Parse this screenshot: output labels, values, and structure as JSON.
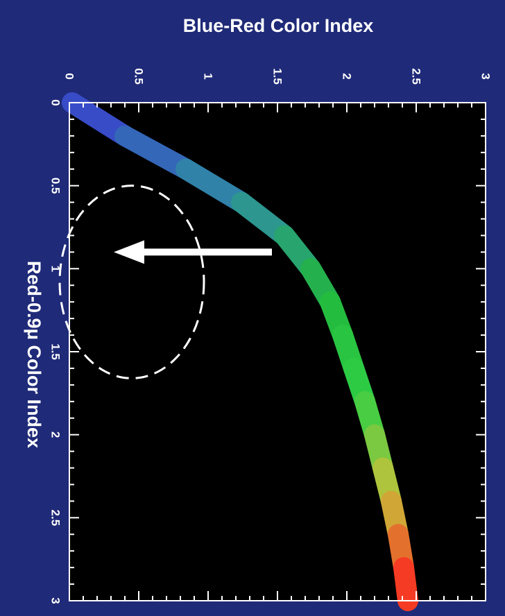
{
  "chart_data": {
    "type": "line",
    "top_axis": {
      "label": "Blue-Red Color Index",
      "range": [
        0,
        3
      ],
      "tick_labels": [
        "0",
        "0.5",
        "1",
        "1.5",
        "2",
        "2.5",
        "3"
      ]
    },
    "left_axis": {
      "label": "Red-0.9μ Color Index",
      "range": [
        0,
        3
      ],
      "tick_labels": [
        "0",
        "0.5",
        "1",
        "1.5",
        "2",
        "2.5",
        "3"
      ]
    },
    "series": [
      {
        "points": [
          {
            "red_09": 0.0,
            "blue_red": 0.02
          },
          {
            "red_09": 0.2,
            "blue_red": 0.4
          },
          {
            "red_09": 0.4,
            "blue_red": 0.84
          },
          {
            "red_09": 0.6,
            "blue_red": 1.24
          },
          {
            "red_09": 0.8,
            "blue_red": 1.55
          },
          {
            "red_09": 1.0,
            "blue_red": 1.74
          },
          {
            "red_09": 1.2,
            "blue_red": 1.88
          },
          {
            "red_09": 1.4,
            "blue_red": 1.97
          },
          {
            "red_09": 1.6,
            "blue_red": 2.05
          },
          {
            "red_09": 1.8,
            "blue_red": 2.13
          },
          {
            "red_09": 2.0,
            "blue_red": 2.2
          },
          {
            "red_09": 2.2,
            "blue_red": 2.26
          },
          {
            "red_09": 2.4,
            "blue_red": 2.32
          },
          {
            "red_09": 2.6,
            "blue_red": 2.37
          },
          {
            "red_09": 2.8,
            "blue_red": 2.41
          },
          {
            "red_09": 3.0,
            "blue_red": 2.44
          }
        ],
        "gradient_colors": [
          "#3a3fd0",
          "#2e8fa0",
          "#22b83c",
          "#2fcf45",
          "#c7c23a",
          "#ff2020"
        ]
      }
    ],
    "annotations": {
      "ellipse": {
        "center_red_09": 1.08,
        "center_blue_red": 0.45,
        "radius_red_09": 0.58,
        "radius_blue_red": 0.52
      },
      "arrow": {
        "red_09": 0.9,
        "from_blue_red": 1.46,
        "to_blue_red": 0.32
      }
    },
    "colors": {
      "background": "#1f2a78",
      "plot_background": "#000000",
      "foreground": "#ffffff"
    },
    "grid": false
  }
}
